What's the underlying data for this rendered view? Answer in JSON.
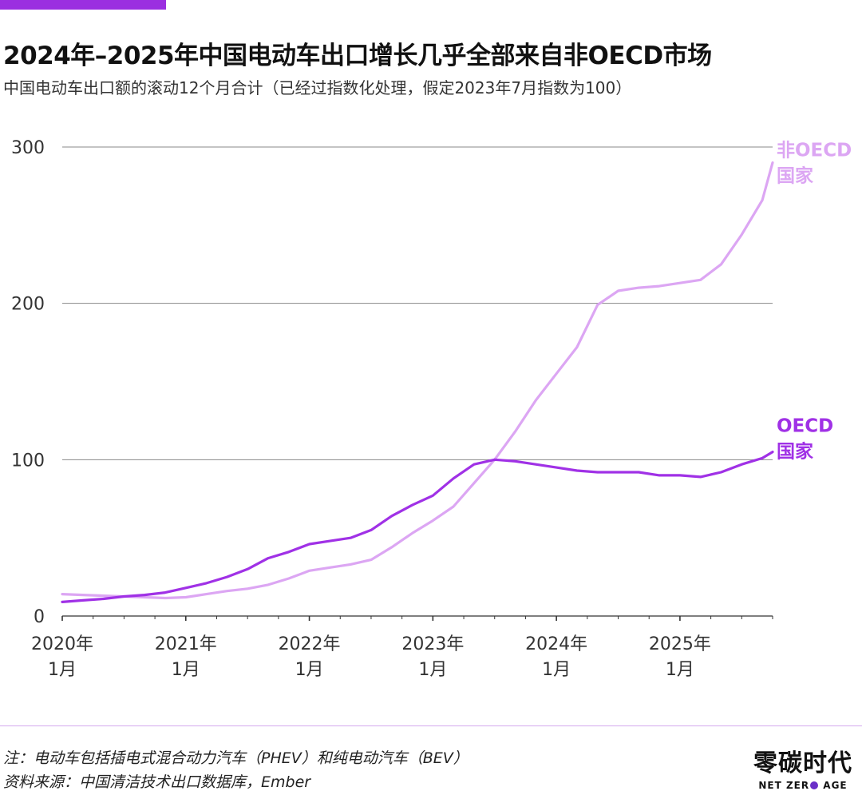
{
  "header": {
    "title": "2024年–2025年中国电动车出口增长几乎全部来自非OECD市场",
    "subtitle": "中国电动车出口额的滚动12个月合计（已经过指数化处理，假定2023年7月指数为100）"
  },
  "footer": {
    "note": "注：电动车包括插电式混合动力汽车（PHEV）和纯电动汽车（BEV）",
    "source": "资料来源：中国清洁技术出口数据库，Ember",
    "brand_cn": "零碳时代",
    "brand_en_left": "NET ZER",
    "brand_en_right": " AGE"
  },
  "colors": {
    "accent": "#9b2fe0",
    "oecd": "#a031e6",
    "non_oecd": "#dca6f3",
    "grid": "#888888",
    "axis_text": "#333333"
  },
  "chart_data": {
    "type": "line",
    "title": "2024年–2025年中国电动车出口增长几乎全部来自非OECD市场",
    "subtitle": "中国电动车出口额的滚动12个月合计（已经过指数化处理，假定2023年7月指数为100）",
    "xlabel": "",
    "ylabel": "",
    "ylim": [
      0,
      300
    ],
    "yticks": [
      0,
      100,
      200,
      300
    ],
    "grid": true,
    "x_range": [
      0,
      69
    ],
    "x_tick_positions": [
      0,
      12,
      24,
      36,
      48,
      60
    ],
    "x_tick_labels": [
      [
        "2020年",
        "1月"
      ],
      [
        "2021年",
        "1月"
      ],
      [
        "2022年",
        "1月"
      ],
      [
        "2023年",
        "1月"
      ],
      [
        "2024年",
        "1月"
      ],
      [
        "2025年",
        "1月"
      ]
    ],
    "x_note": "x = months since 2020年1月",
    "series": [
      {
        "name": "非OECD国家",
        "label_lines": [
          "非OECD",
          "国家"
        ],
        "color": "#dca6f3",
        "x": [
          0,
          2,
          4,
          6,
          8,
          10,
          12,
          14,
          16,
          18,
          20,
          22,
          24,
          26,
          28,
          30,
          32,
          34,
          36,
          38,
          40,
          42,
          44,
          46,
          48,
          50,
          52,
          54,
          56,
          58,
          60,
          62,
          64,
          66,
          68,
          69
        ],
        "values": [
          14,
          13.5,
          13,
          12.5,
          12,
          11.5,
          12,
          14,
          16,
          17.5,
          20,
          24,
          29,
          31,
          33,
          36,
          44,
          53,
          61,
          70,
          85,
          100,
          118,
          138,
          155,
          172,
          199,
          208,
          210,
          211,
          213,
          215,
          225,
          244,
          266,
          290
        ]
      },
      {
        "name": "OECD国家",
        "label_lines": [
          "OECD",
          "国家"
        ],
        "color": "#a031e6",
        "x": [
          0,
          2,
          4,
          6,
          8,
          10,
          12,
          14,
          16,
          18,
          20,
          22,
          24,
          26,
          28,
          30,
          32,
          34,
          36,
          38,
          40,
          42,
          44,
          46,
          48,
          50,
          52,
          54,
          56,
          58,
          60,
          62,
          64,
          66,
          68,
          69
        ],
        "values": [
          9,
          10,
          11,
          12.5,
          13.5,
          15,
          18,
          21,
          25,
          30,
          37,
          41,
          46,
          48,
          50,
          55,
          64,
          71,
          77,
          88,
          97,
          100,
          99,
          97,
          95,
          93,
          92,
          92,
          92,
          90,
          90,
          89,
          92,
          97,
          101,
          105
        ]
      }
    ]
  }
}
